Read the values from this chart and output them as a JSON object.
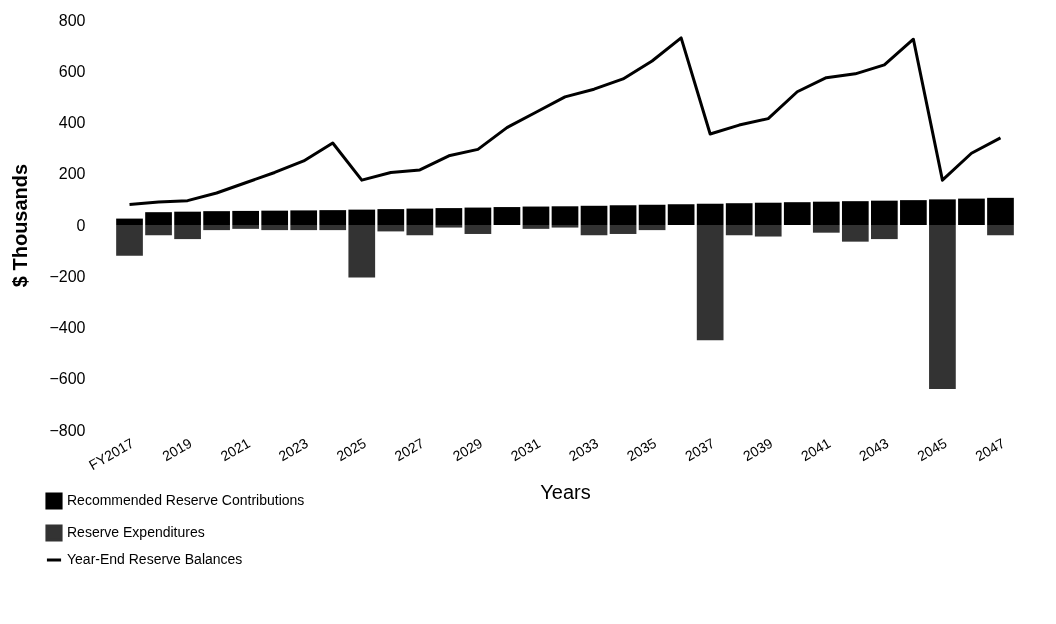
{
  "chart_data": {
    "type": "bar",
    "stacked": true,
    "xlabel": "Years",
    "ylabel": "$ Thousands",
    "categories": [
      "FY2017",
      null,
      "2019",
      null,
      "2021",
      null,
      "2023",
      null,
      "2025",
      null,
      "2027",
      null,
      "2029",
      null,
      "2031",
      null,
      "2033",
      null,
      "2035",
      null,
      "2037",
      null,
      "2039",
      null,
      "2041",
      null,
      "2043",
      null,
      "2045",
      null,
      "2047"
    ],
    "series": [
      {
        "name": "Recommended Reserve Contributions",
        "type": "bar",
        "color": "#000000",
        "values": [
          25,
          50,
          52,
          54,
          55,
          56,
          57,
          58,
          60,
          62,
          64,
          66,
          68,
          70,
          72,
          73,
          75,
          77,
          79,
          81,
          83,
          85,
          87,
          89,
          91,
          93,
          95,
          97,
          100,
          103,
          106
        ]
      },
      {
        "name": "Reserve Expenditures",
        "type": "bar",
        "color": "#333333",
        "values": [
          -120,
          -40,
          -55,
          -20,
          -15,
          -20,
          -20,
          -20,
          -205,
          -25,
          -40,
          -10,
          -35,
          0,
          -15,
          -10,
          -40,
          -35,
          -20,
          0,
          -450,
          -40,
          -45,
          0,
          -30,
          -65,
          -55,
          0,
          -640,
          0,
          -40
        ]
      },
      {
        "name": "Year-End Reserve Balances",
        "type": "line",
        "color": "#000000",
        "values": [
          80,
          90,
          95,
          125,
          165,
          205,
          250,
          320,
          175,
          205,
          215,
          270,
          295,
          380,
          440,
          500,
          530,
          570,
          640,
          730,
          355,
          390,
          415,
          520,
          575,
          590,
          625,
          725,
          175,
          280,
          340
        ]
      }
    ],
    "ylim": [
      -800,
      800
    ],
    "yticks": [
      -800,
      -600,
      -400,
      -200,
      0,
      200,
      400,
      600,
      800
    ],
    "grid": false,
    "legend": "bottom left",
    "line_style": "solid",
    "marker": "none"
  }
}
